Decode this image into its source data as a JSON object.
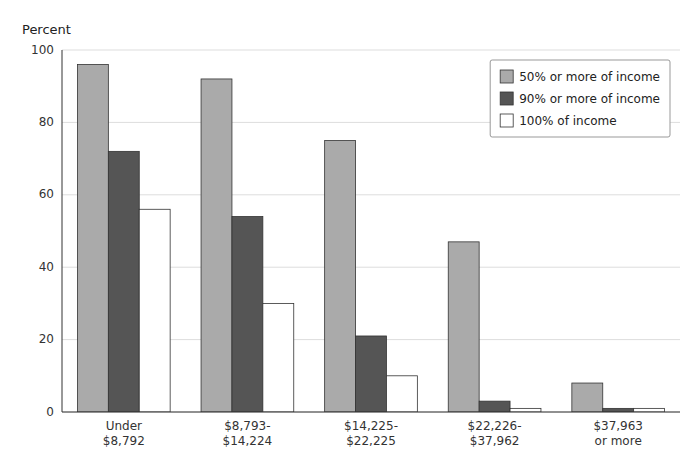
{
  "chart_data": {
    "type": "bar",
    "y_label": "Percent",
    "categories": [
      "Under\n$8,792",
      "$8,793-\n$14,224",
      "$14,225-\n$22,225",
      "$22,226-\n$37,962",
      "$37,963\nor more"
    ],
    "series": [
      {
        "name": "50% or more of income",
        "color": "#aaaaaa",
        "values": [
          96,
          92,
          75,
          47,
          8
        ]
      },
      {
        "name": "90% or more of income",
        "color": "#555555",
        "values": [
          72,
          54,
          21,
          3,
          1
        ]
      },
      {
        "name": "100% of income",
        "color": "#ffffff",
        "values": [
          56,
          30,
          10,
          1,
          1
        ]
      }
    ],
    "ylim": [
      0,
      100
    ],
    "yticks": [
      0,
      20,
      40,
      60,
      80,
      100
    ],
    "grid": true,
    "legend": "upper right"
  }
}
